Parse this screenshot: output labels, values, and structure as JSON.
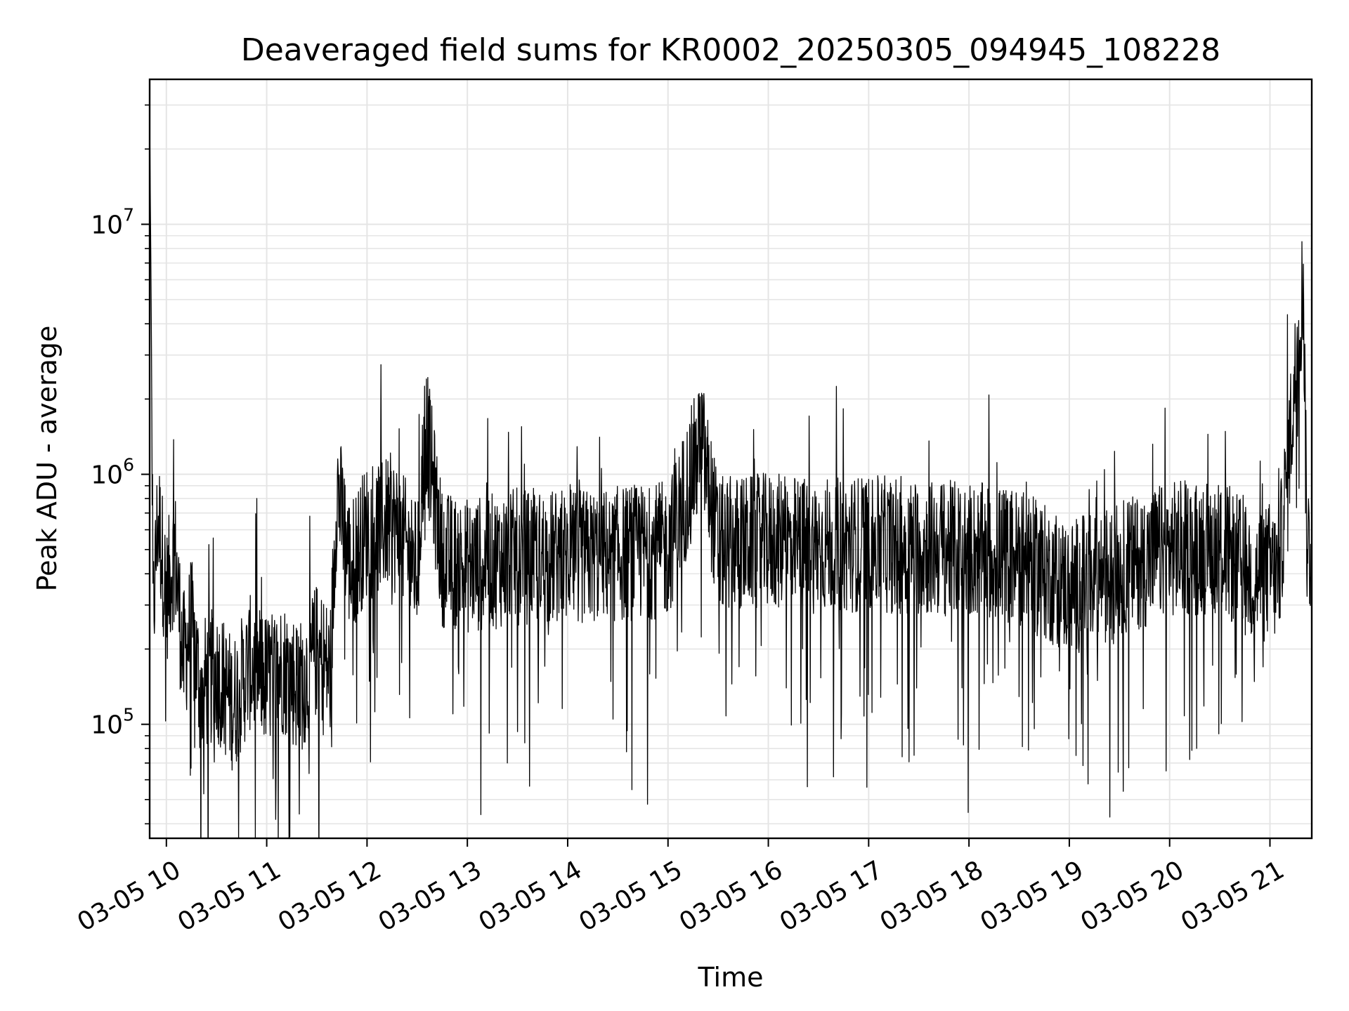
{
  "chart_data": {
    "type": "line",
    "title": "Deaveraged field sums for KR0002_20250305_094945_108228",
    "xlabel": "Time",
    "ylabel": "Peak ADU - average",
    "yscale": "log",
    "grid": true,
    "line_color": "#000000",
    "grid_color": "#e5e5e5",
    "xlim": [
      "2025-03-05 09:50",
      "2025-03-05 21:25"
    ],
    "ylim": [
      35000,
      38000000
    ],
    "x_ticks": [
      {
        "t": "2025-03-05 10:00",
        "label": "03-05 10"
      },
      {
        "t": "2025-03-05 11:00",
        "label": "03-05 11"
      },
      {
        "t": "2025-03-05 12:00",
        "label": "03-05 12"
      },
      {
        "t": "2025-03-05 13:00",
        "label": "03-05 13"
      },
      {
        "t": "2025-03-05 14:00",
        "label": "03-05 14"
      },
      {
        "t": "2025-03-05 15:00",
        "label": "03-05 15"
      },
      {
        "t": "2025-03-05 16:00",
        "label": "03-05 16"
      },
      {
        "t": "2025-03-05 17:00",
        "label": "03-05 17"
      },
      {
        "t": "2025-03-05 18:00",
        "label": "03-05 18"
      },
      {
        "t": "2025-03-05 19:00",
        "label": "03-05 19"
      },
      {
        "t": "2025-03-05 20:00",
        "label": "03-05 20"
      },
      {
        "t": "2025-03-05 21:00",
        "label": "03-05 21"
      }
    ],
    "y_ticks": [
      {
        "value": 100000,
        "base": "10",
        "exp": "5"
      },
      {
        "value": 1000000,
        "base": "10",
        "exp": "6"
      },
      {
        "value": 10000000,
        "base": "10",
        "exp": "7"
      }
    ],
    "series": [
      {
        "points": [
          [
            "2025-03-05 09:50",
            28000000
          ],
          [
            "2025-03-05 09:51",
            4000000
          ],
          [
            "2025-03-05 09:52",
            260000
          ],
          [
            "2025-03-05 09:55",
            700000
          ],
          [
            "2025-03-05 10:00",
            320000
          ],
          [
            "2025-03-05 10:05",
            500000
          ],
          [
            "2025-03-05 10:10",
            180000
          ],
          [
            "2025-03-05 10:15",
            250000
          ],
          [
            "2025-03-05 10:20",
            140000
          ],
          [
            "2025-03-05 10:30",
            160000
          ],
          [
            "2025-03-05 10:40",
            120000
          ],
          [
            "2025-03-05 10:50",
            175000
          ],
          [
            "2025-03-05 11:00",
            150000
          ],
          [
            "2025-03-05 11:10",
            170000
          ],
          [
            "2025-03-05 11:20",
            140000
          ],
          [
            "2025-03-05 11:30",
            200000
          ],
          [
            "2025-03-05 11:38",
            160000
          ],
          [
            "2025-03-05 11:42",
            900000
          ],
          [
            "2025-03-05 11:50",
            420000
          ],
          [
            "2025-03-05 12:00",
            600000
          ],
          [
            "2025-03-05 12:15",
            650000
          ],
          [
            "2025-03-05 12:30",
            420000
          ],
          [
            "2025-03-05 12:35",
            1600000
          ],
          [
            "2025-03-05 12:45",
            460000
          ],
          [
            "2025-03-05 13:00",
            430000
          ],
          [
            "2025-03-05 13:30",
            470000
          ],
          [
            "2025-03-05 14:00",
            460000
          ],
          [
            "2025-03-05 14:30",
            480000
          ],
          [
            "2025-03-05 15:00",
            500000
          ],
          [
            "2025-03-05 15:20",
            1350000
          ],
          [
            "2025-03-05 15:30",
            520000
          ],
          [
            "2025-03-05 16:00",
            540000
          ],
          [
            "2025-03-05 16:30",
            520000
          ],
          [
            "2025-03-05 17:00",
            530000
          ],
          [
            "2025-03-05 17:30",
            510000
          ],
          [
            "2025-03-05 18:00",
            500000
          ],
          [
            "2025-03-05 18:30",
            470000
          ],
          [
            "2025-03-05 19:00",
            350000
          ],
          [
            "2025-03-05 19:30",
            420000
          ],
          [
            "2025-03-05 20:00",
            500000
          ],
          [
            "2025-03-05 20:30",
            520000
          ],
          [
            "2025-03-05 20:52",
            380000
          ],
          [
            "2025-03-05 21:00",
            420000
          ],
          [
            "2025-03-05 21:05",
            380000
          ],
          [
            "2025-03-05 21:20",
            6000000
          ],
          [
            "2025-03-05 21:22",
            550000
          ],
          [
            "2025-03-05 21:25",
            480000
          ]
        ]
      }
    ]
  }
}
